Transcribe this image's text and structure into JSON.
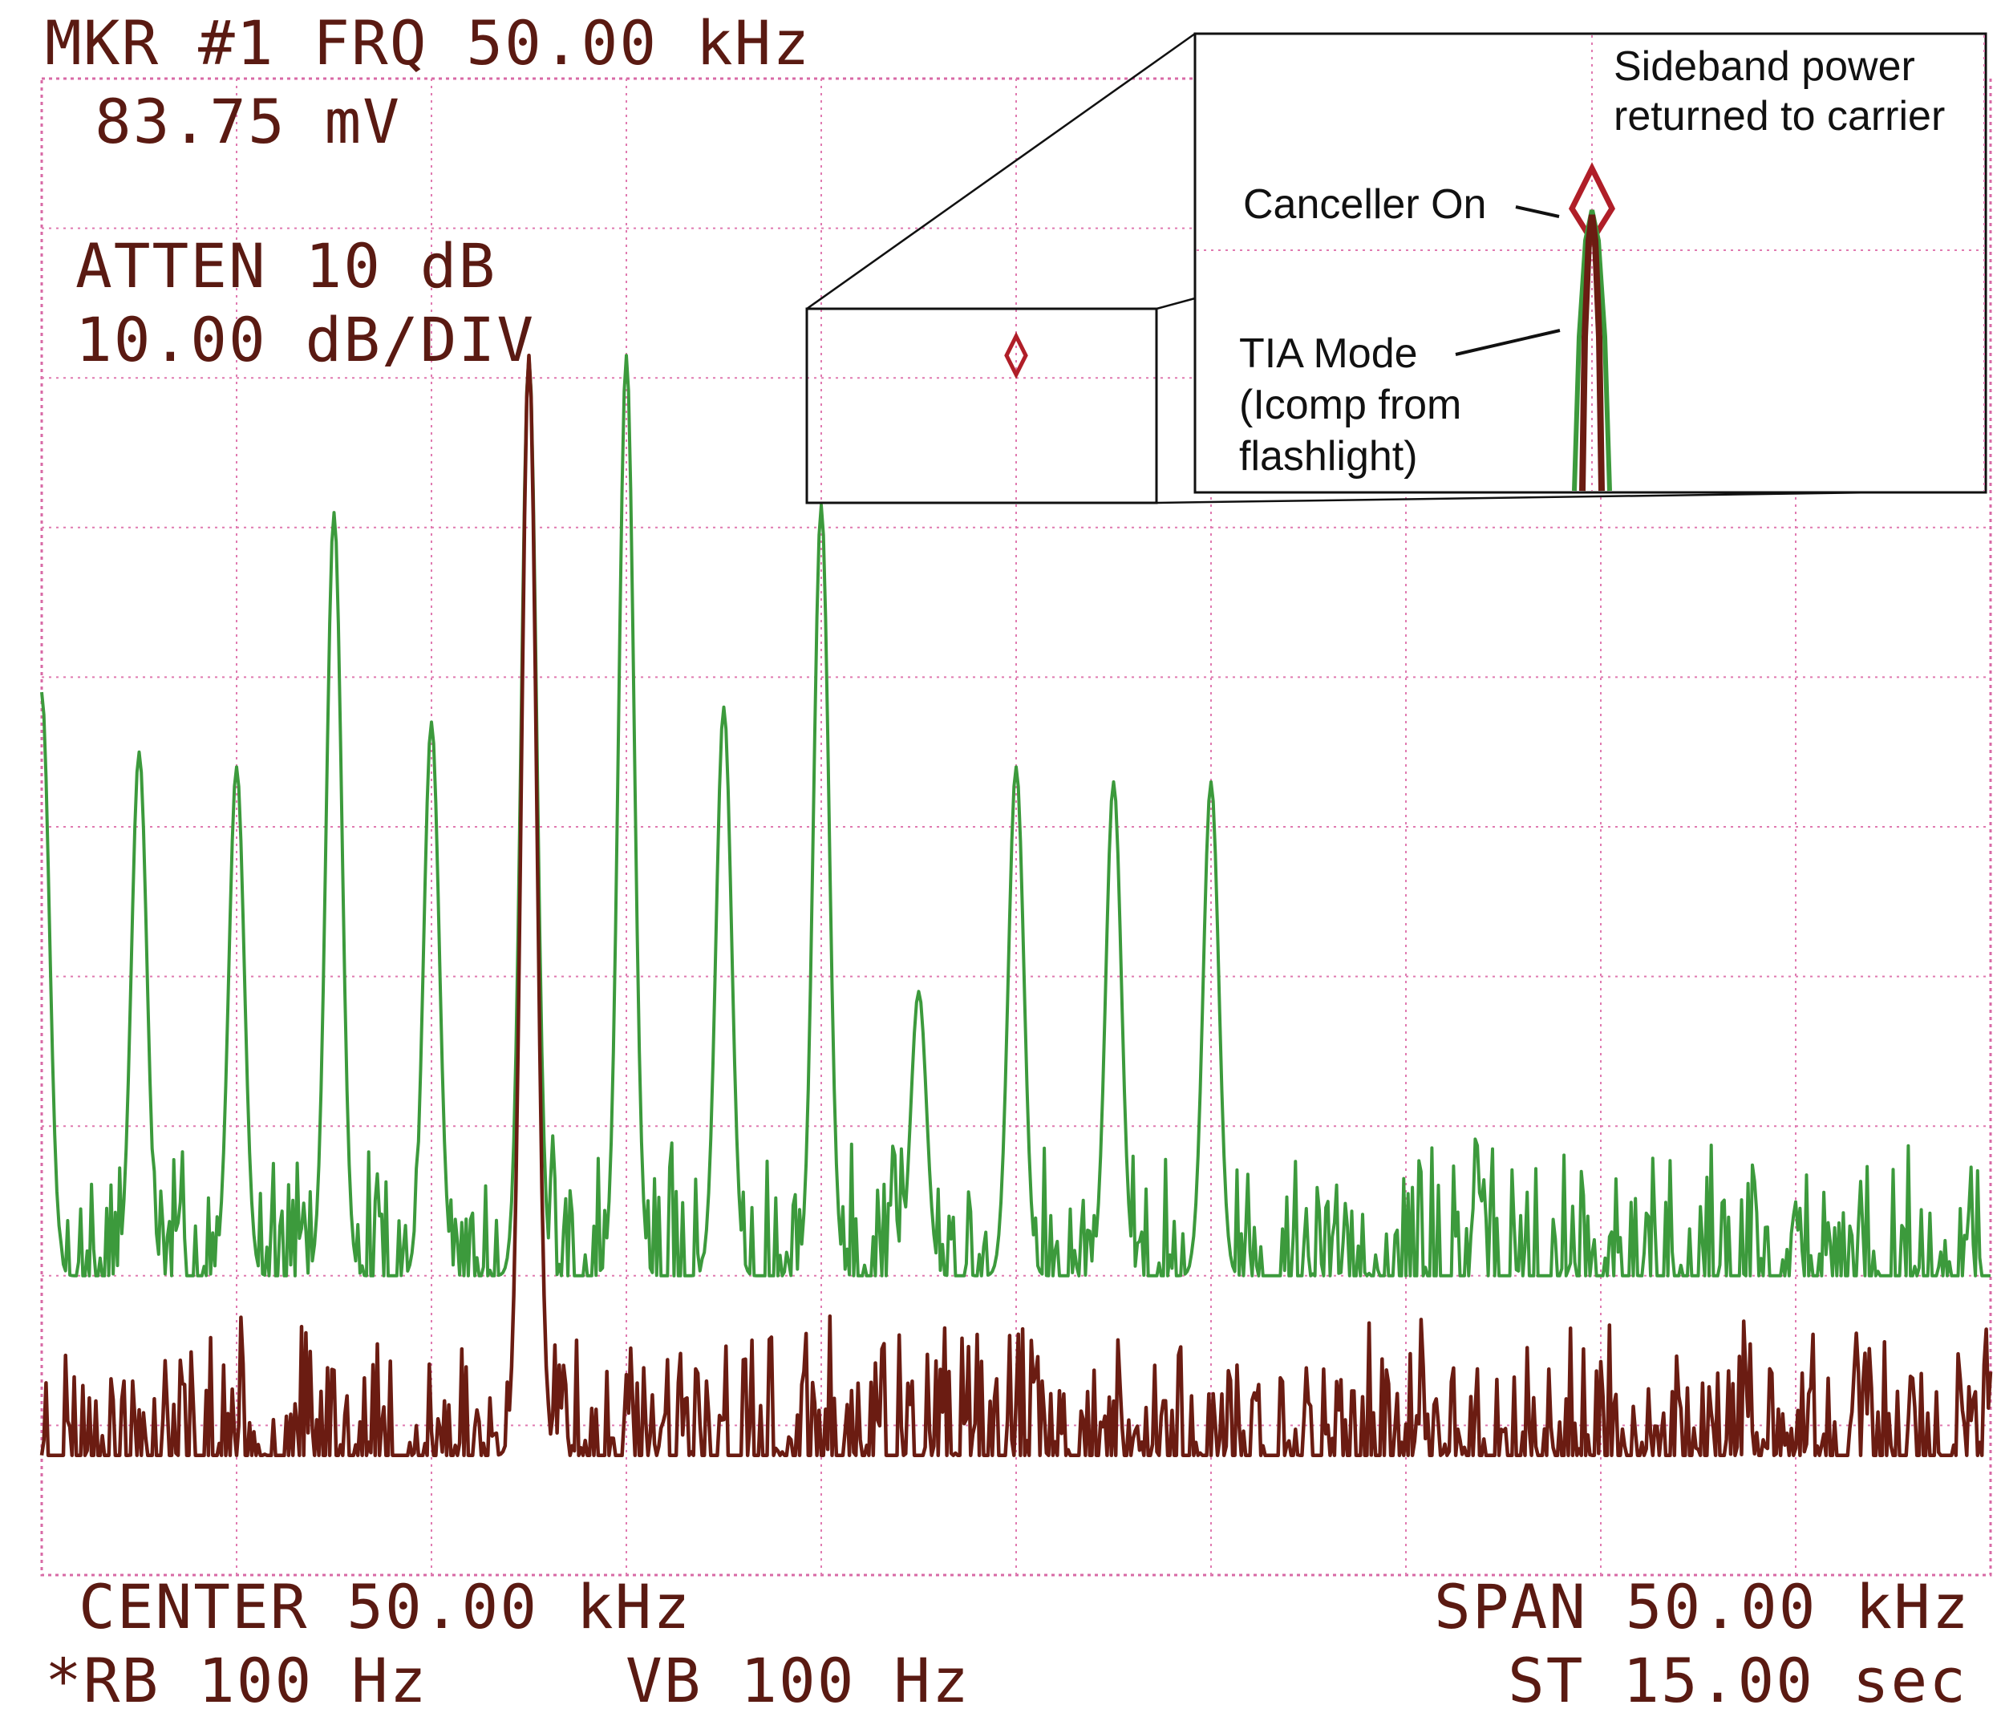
{
  "header": {
    "marker_line": "MKR #1 FRQ 50.00 kHz",
    "marker_value": "83.75 mV",
    "atten": "ATTEN 10 dB",
    "scale": "10.00 dB/DIV"
  },
  "footer": {
    "center": "CENTER 50.00 kHz",
    "span": "SPAN 50.00 kHz",
    "rbw": "*RB 100 Hz",
    "vbw": "VB 100 Hz",
    "sweep": "ST 15.00 sec"
  },
  "annotations": {
    "sideband_line1": "Sideband power",
    "sideband_line2": "returned to carrier",
    "canceller_on": "Canceller On",
    "tia_line1": "TIA Mode",
    "tia_line2": "(Icomp from",
    "tia_line3": "flashlight)"
  },
  "colors": {
    "tia_trace": "#3c9a3c",
    "canceller_trace": "#6b1c12",
    "grid": "#e07ab0",
    "text": "#5a1a12"
  },
  "chart_data": {
    "type": "line",
    "x_units": "kHz",
    "y_units": "dB",
    "xlim": [
      25,
      75
    ],
    "ylim": [
      -100,
      0
    ],
    "divisions": {
      "x": 10,
      "y": 10
    },
    "grid": true,
    "marker": {
      "x": 50.0,
      "y": -18.5
    },
    "series": [
      {
        "name": "TIA Mode (Icomp from flashlight)",
        "color": "#3c9a3c",
        "noise_floor": -80,
        "peaks": [
          {
            "x": 25.0,
            "y": -41
          },
          {
            "x": 27.5,
            "y": -45
          },
          {
            "x": 30.0,
            "y": -46
          },
          {
            "x": 32.5,
            "y": -29
          },
          {
            "x": 35.0,
            "y": -43
          },
          {
            "x": 37.5,
            "y": -18.5
          },
          {
            "x": 40.0,
            "y": -18.5
          },
          {
            "x": 42.5,
            "y": -42
          },
          {
            "x": 45.0,
            "y": -28.5
          },
          {
            "x": 47.5,
            "y": -61
          },
          {
            "x": 50.0,
            "y": -46
          },
          {
            "x": 52.5,
            "y": -47
          },
          {
            "x": 55.0,
            "y": -47
          }
        ]
      },
      {
        "name": "Canceller On",
        "color": "#6b1c12",
        "noise_floor": -92,
        "peaks": [
          {
            "x": 37.5,
            "y": -18.5
          }
        ]
      }
    ]
  }
}
